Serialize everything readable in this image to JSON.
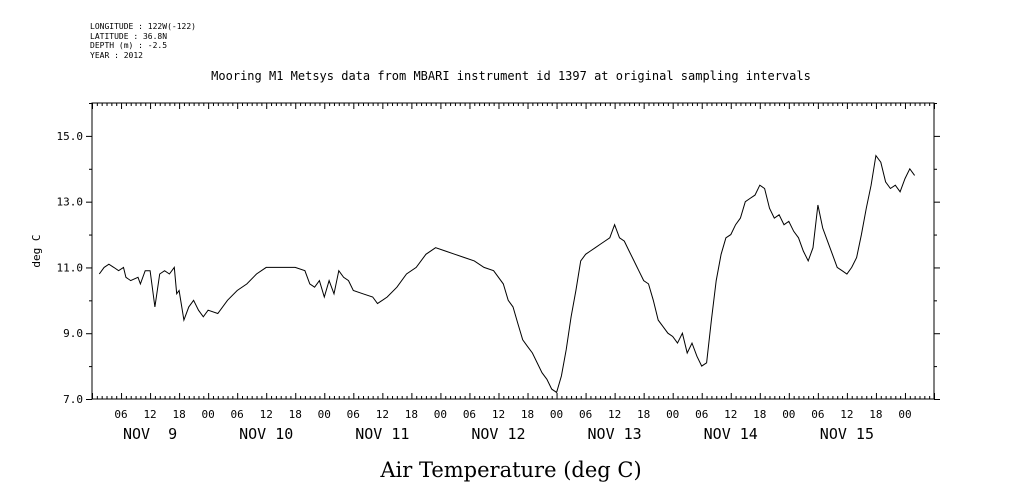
{
  "header": {
    "longitude": "LONGITUDE : 122W(-122)",
    "latitude": "LATITUDE : 36.8N",
    "depth": "DEPTH (m) : -2.5",
    "year": "YEAR : 2012"
  },
  "chart_data": {
    "type": "line",
    "title": "Mooring M1 Metsys data from MBARI instrument id 1397 at original sampling intervals",
    "xlabel": "Air Temperature (deg C)",
    "ylabel": "deg C",
    "ylim": [
      7.0,
      16.0
    ],
    "yticks_labeled": [
      "7.0",
      "9.0",
      "11.0",
      "13.0",
      "15.0"
    ],
    "x_hour_labels": [
      "06",
      "12",
      "18",
      "00",
      "06",
      "12",
      "18",
      "00",
      "06",
      "12",
      "18",
      "00",
      "06",
      "12",
      "18",
      "00",
      "06",
      "12",
      "18",
      "00",
      "06",
      "12",
      "18",
      "00",
      "06",
      "12",
      "18",
      "00"
    ],
    "day_labels": [
      "NOV  9",
      "NOV 10",
      "NOV 11",
      "NOV 12",
      "NOV 13",
      "NOV 14",
      "NOV 15"
    ],
    "x_unit": "hours from Nov 9 00:00",
    "x_range": [
      1.5,
      170
    ],
    "grid": false,
    "series": [
      {
        "points": [
          [
            1.5,
            10.8
          ],
          [
            2.5,
            11.0
          ],
          [
            3.5,
            11.1
          ],
          [
            4.5,
            11.0
          ],
          [
            5.5,
            10.9
          ],
          [
            6.5,
            11.0
          ],
          [
            7,
            10.7
          ],
          [
            8,
            10.6
          ],
          [
            9.5,
            10.7
          ],
          [
            10,
            10.5
          ],
          [
            11,
            10.9
          ],
          [
            12,
            10.9
          ],
          [
            13,
            9.8
          ],
          [
            14,
            10.8
          ],
          [
            15,
            10.9
          ],
          [
            16,
            10.8
          ],
          [
            17,
            11.0
          ],
          [
            17.5,
            10.2
          ],
          [
            18,
            10.3
          ],
          [
            19,
            9.4
          ],
          [
            20,
            9.8
          ],
          [
            21,
            10.0
          ],
          [
            22,
            9.7
          ],
          [
            23,
            9.5
          ],
          [
            24,
            9.7
          ],
          [
            26,
            9.6
          ],
          [
            28,
            10.0
          ],
          [
            30,
            10.3
          ],
          [
            32,
            10.5
          ],
          [
            34,
            10.8
          ],
          [
            36,
            11.0
          ],
          [
            38,
            11.0
          ],
          [
            40,
            11.0
          ],
          [
            42,
            11.0
          ],
          [
            44,
            10.9
          ],
          [
            45,
            10.5
          ],
          [
            46,
            10.4
          ],
          [
            47,
            10.6
          ],
          [
            48,
            10.1
          ],
          [
            49,
            10.6
          ],
          [
            50,
            10.2
          ],
          [
            51,
            10.9
          ],
          [
            52,
            10.7
          ],
          [
            53,
            10.6
          ],
          [
            54,
            10.3
          ],
          [
            56,
            10.2
          ],
          [
            58,
            10.1
          ],
          [
            59,
            9.9
          ],
          [
            61,
            10.1
          ],
          [
            63,
            10.4
          ],
          [
            65,
            10.8
          ],
          [
            67,
            11.0
          ],
          [
            69,
            11.4
          ],
          [
            71,
            11.6
          ],
          [
            73,
            11.5
          ],
          [
            75,
            11.4
          ],
          [
            77,
            11.3
          ],
          [
            79,
            11.2
          ],
          [
            81,
            11.0
          ],
          [
            83,
            10.9
          ],
          [
            85,
            10.5
          ],
          [
            86,
            10.0
          ],
          [
            87,
            9.8
          ],
          [
            88,
            9.3
          ],
          [
            89,
            8.8
          ],
          [
            90,
            8.6
          ],
          [
            91,
            8.4
          ],
          [
            93,
            7.8
          ],
          [
            94,
            7.6
          ],
          [
            95,
            7.3
          ],
          [
            96,
            7.2
          ],
          [
            97,
            7.7
          ],
          [
            98,
            8.5
          ],
          [
            99,
            9.5
          ],
          [
            100,
            10.3
          ],
          [
            101,
            11.2
          ],
          [
            102,
            11.4
          ],
          [
            103,
            11.5
          ],
          [
            104,
            11.6
          ],
          [
            105,
            11.7
          ],
          [
            106,
            11.8
          ],
          [
            107,
            11.9
          ],
          [
            108,
            12.3
          ],
          [
            109,
            11.9
          ],
          [
            110,
            11.8
          ],
          [
            111,
            11.5
          ],
          [
            112,
            11.2
          ],
          [
            113,
            10.9
          ],
          [
            114,
            10.6
          ],
          [
            115,
            10.5
          ],
          [
            116,
            10.0
          ],
          [
            117,
            9.4
          ],
          [
            118,
            9.2
          ],
          [
            119,
            9.0
          ],
          [
            120,
            8.9
          ],
          [
            121,
            8.7
          ],
          [
            122,
            9.0
          ],
          [
            123,
            8.4
          ],
          [
            124,
            8.7
          ],
          [
            125,
            8.3
          ],
          [
            126,
            8.0
          ],
          [
            127,
            8.1
          ],
          [
            128,
            9.4
          ],
          [
            129,
            10.6
          ],
          [
            130,
            11.4
          ],
          [
            131,
            11.9
          ],
          [
            132,
            12.0
          ],
          [
            133,
            12.3
          ],
          [
            134,
            12.5
          ],
          [
            135,
            13.0
          ],
          [
            136,
            13.1
          ],
          [
            137,
            13.2
          ],
          [
            138,
            13.5
          ],
          [
            139,
            13.4
          ],
          [
            140,
            12.8
          ],
          [
            141,
            12.5
          ],
          [
            142,
            12.6
          ],
          [
            143,
            12.3
          ],
          [
            144,
            12.4
          ],
          [
            145,
            12.1
          ],
          [
            146,
            11.9
          ],
          [
            147,
            11.5
          ],
          [
            148,
            11.2
          ],
          [
            149,
            11.6
          ],
          [
            150,
            12.9
          ],
          [
            151,
            12.2
          ],
          [
            152,
            11.8
          ],
          [
            153,
            11.4
          ],
          [
            154,
            11.0
          ],
          [
            155,
            10.9
          ],
          [
            156,
            10.8
          ],
          [
            157,
            11.0
          ],
          [
            158,
            11.3
          ],
          [
            159,
            12.0
          ],
          [
            160,
            12.8
          ],
          [
            161,
            13.5
          ],
          [
            162,
            14.4
          ],
          [
            163,
            14.2
          ],
          [
            164,
            13.6
          ],
          [
            165,
            13.4
          ],
          [
            166,
            13.5
          ],
          [
            167,
            13.3
          ],
          [
            168,
            13.7
          ],
          [
            169,
            14.0
          ],
          [
            170,
            13.8
          ]
        ]
      }
    ]
  }
}
